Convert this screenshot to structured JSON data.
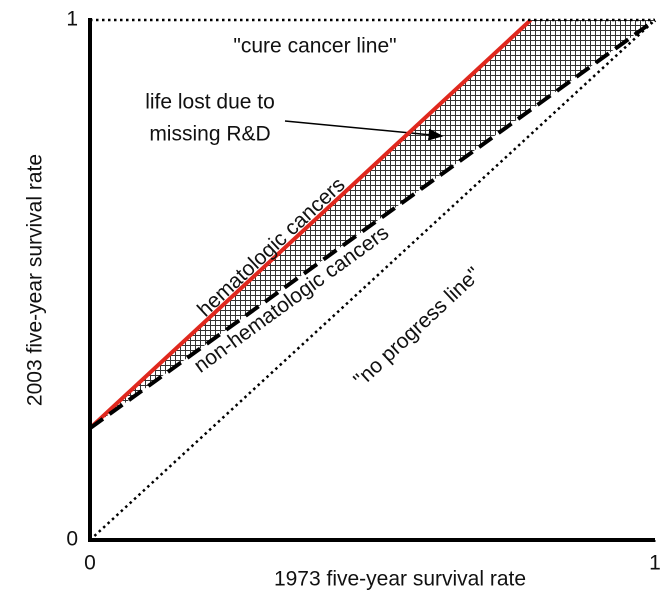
{
  "chart_data": {
    "type": "line",
    "xlabel": "1973 five-year survival rate",
    "ylabel": "2003 five-year survival rate",
    "xlim": [
      0,
      1
    ],
    "ylim": [
      0,
      1
    ],
    "xticks": [
      0,
      1
    ],
    "yticks": [
      0,
      1
    ],
    "series": [
      {
        "name": "hematologic cancers",
        "color": "#e0281e",
        "linestyle": "solid",
        "x": [
          0,
          0.78
        ],
        "values": [
          0.215,
          1
        ]
      },
      {
        "name": "non-hematologic cancers",
        "color": "#000000",
        "linestyle": "dashed",
        "x": [
          0,
          1
        ],
        "values": [
          0.215,
          1
        ]
      },
      {
        "name": "\"no progress line\"",
        "color": "#000000",
        "linestyle": "dotted",
        "x": [
          0,
          1
        ],
        "values": [
          0,
          1
        ]
      },
      {
        "name": "\"cure cancer line\"",
        "color": "#000000",
        "linestyle": "dotted",
        "x": [
          0,
          1
        ],
        "values": [
          1,
          1
        ]
      }
    ],
    "annotations": [
      "life lost due to",
      "missing R&D"
    ]
  }
}
